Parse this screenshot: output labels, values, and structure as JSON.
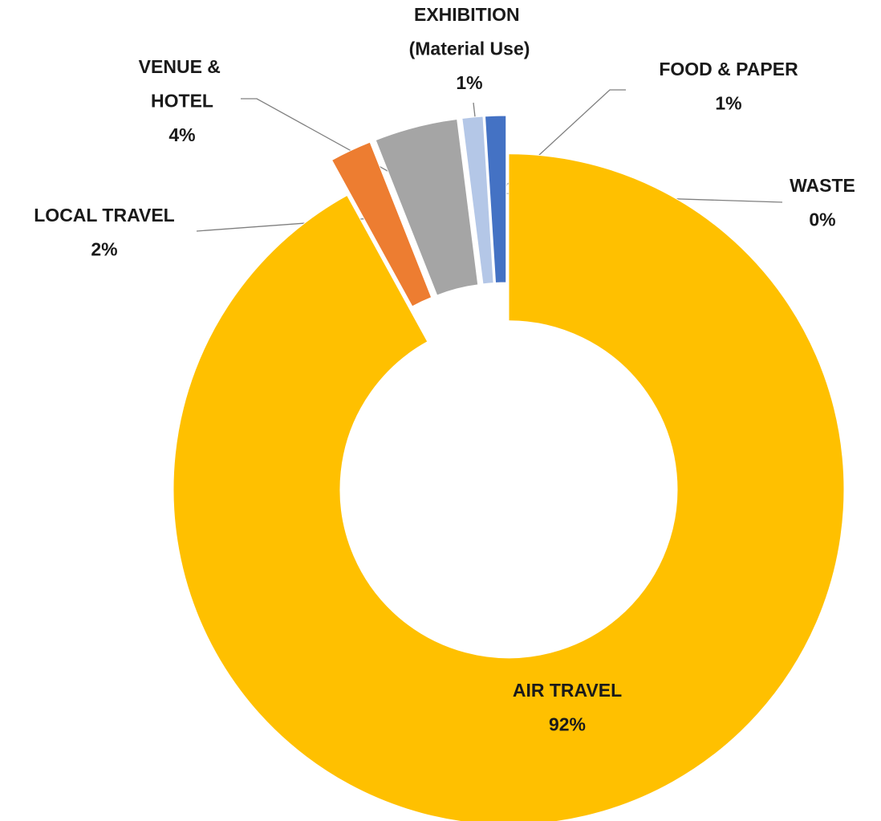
{
  "chart_data": {
    "type": "donut",
    "categories": [
      "AIR TRAVEL",
      "LOCAL TRAVEL",
      "VENUE & HOTEL",
      "EXHIBITION (Material Use)",
      "FOOD & PAPER",
      "WASTE"
    ],
    "values": [
      92,
      2,
      4,
      1,
      1,
      0
    ],
    "value_labels": [
      "92%",
      "2%",
      "4%",
      "1%",
      "1%",
      "0%"
    ],
    "colors": [
      "#FFC000",
      "#ED7D31",
      "#A5A5A5",
      "#B4C7E7",
      "#4472C4",
      "#5B9BD5"
    ]
  }
}
